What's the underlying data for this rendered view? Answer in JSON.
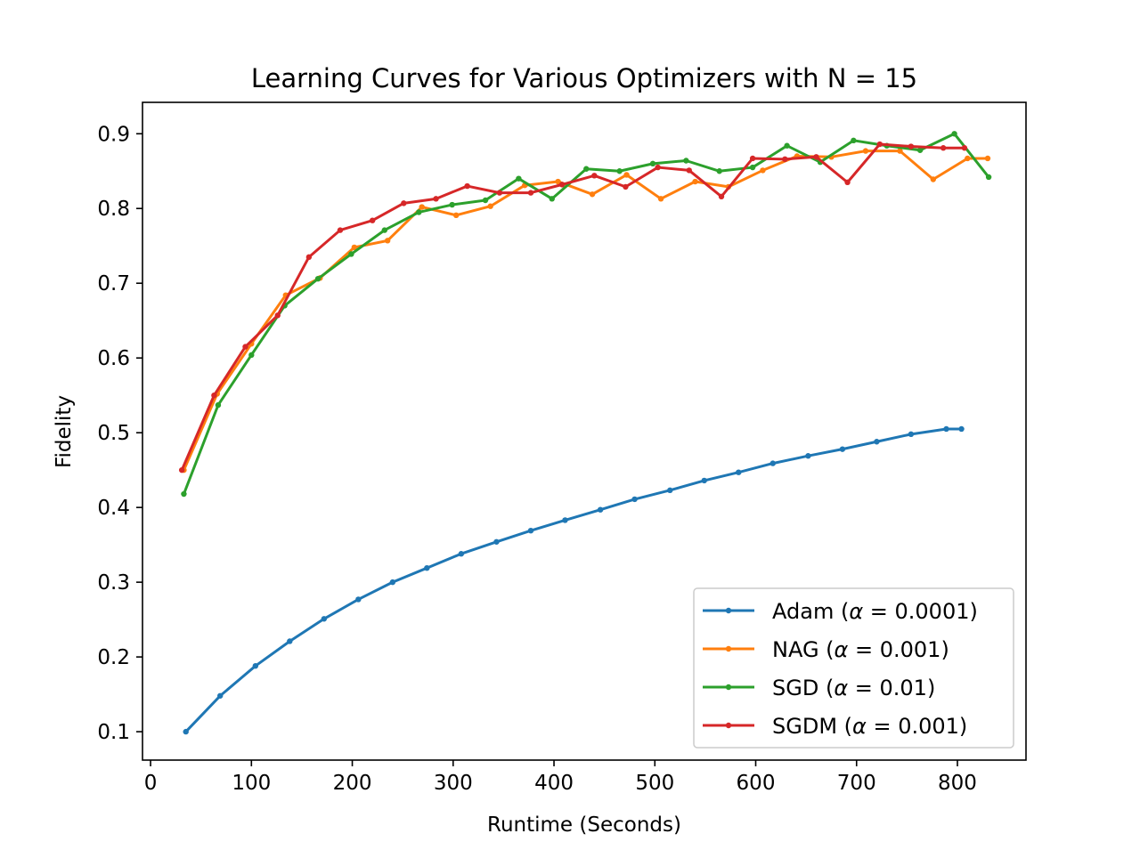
{
  "chart_data": {
    "type": "line",
    "title": "Learning Curves for Various Optimizers with N = 15",
    "xlabel": "Runtime (Seconds)",
    "ylabel": "Fidelity",
    "xlim": [
      -8,
      868
    ],
    "ylim": [
      0.062,
      0.942
    ],
    "xticks": [
      0,
      100,
      200,
      300,
      400,
      500,
      600,
      700,
      800
    ],
    "yticks": [
      0.1,
      0.2,
      0.3,
      0.4,
      0.5,
      0.6,
      0.7,
      0.8,
      0.9
    ],
    "xtick_labels": [
      "0",
      "100",
      "200",
      "300",
      "400",
      "500",
      "600",
      "700",
      "800"
    ],
    "ytick_labels": [
      "0.1",
      "0.2",
      "0.3",
      "0.4",
      "0.5",
      "0.6",
      "0.7",
      "0.8",
      "0.9"
    ],
    "grid": false,
    "legend": {
      "position": "lower-right",
      "entries": [
        {
          "prefix": "Adam (",
          "greek": "α",
          "suffix": " = 0.0001)"
        },
        {
          "prefix": "NAG (",
          "greek": "α",
          "suffix": " = 0.001)"
        },
        {
          "prefix": "SGD (",
          "greek": "α",
          "suffix": " = 0.01)"
        },
        {
          "prefix": "SGDM (",
          "greek": "α",
          "suffix": " = 0.001)"
        }
      ]
    },
    "series": [
      {
        "key": "adam",
        "color": "#1f77b4",
        "x": [
          35,
          69,
          104,
          138,
          172,
          206,
          240,
          274,
          308,
          343,
          377,
          411,
          446,
          480,
          515,
          549,
          583,
          617,
          652,
          686,
          720,
          754,
          789,
          804
        ],
        "y": [
          0.1,
          0.148,
          0.188,
          0.221,
          0.251,
          0.277,
          0.3,
          0.319,
          0.338,
          0.354,
          0.369,
          0.383,
          0.397,
          0.411,
          0.423,
          0.436,
          0.447,
          0.459,
          0.469,
          0.478,
          0.488,
          0.498,
          0.505,
          0.505
        ]
      },
      {
        "key": "nag",
        "color": "#ff7f0e",
        "x": [
          33,
          66,
          100,
          134,
          168,
          202,
          235,
          269,
          303,
          337,
          371,
          404,
          438,
          472,
          506,
          540,
          573,
          607,
          641,
          675,
          709,
          743,
          776,
          810,
          830
        ],
        "y": [
          0.45,
          0.552,
          0.619,
          0.684,
          0.707,
          0.748,
          0.757,
          0.802,
          0.791,
          0.803,
          0.831,
          0.836,
          0.819,
          0.845,
          0.813,
          0.836,
          0.829,
          0.851,
          0.87,
          0.869,
          0.877,
          0.877,
          0.839,
          0.867,
          0.867
        ]
      },
      {
        "key": "sgd",
        "color": "#2ca02c",
        "x": [
          33,
          67,
          100,
          133,
          166,
          199,
          232,
          266,
          299,
          332,
          365,
          398,
          432,
          465,
          498,
          531,
          564,
          597,
          631,
          664,
          697,
          730,
          763,
          797,
          831
        ],
        "y": [
          0.418,
          0.537,
          0.604,
          0.67,
          0.706,
          0.739,
          0.771,
          0.795,
          0.805,
          0.811,
          0.84,
          0.813,
          0.853,
          0.85,
          0.86,
          0.864,
          0.85,
          0.855,
          0.884,
          0.862,
          0.891,
          0.884,
          0.878,
          0.9,
          0.842
        ]
      },
      {
        "key": "sgdm",
        "color": "#d62728",
        "x": [
          31,
          63,
          94,
          126,
          157,
          188,
          220,
          251,
          283,
          314,
          346,
          377,
          408,
          440,
          471,
          503,
          534,
          566,
          597,
          629,
          660,
          691,
          723,
          754,
          786,
          807
        ],
        "y": [
          0.45,
          0.55,
          0.615,
          0.657,
          0.735,
          0.771,
          0.784,
          0.807,
          0.813,
          0.83,
          0.821,
          0.821,
          0.832,
          0.844,
          0.829,
          0.855,
          0.851,
          0.816,
          0.867,
          0.866,
          0.869,
          0.835,
          0.886,
          0.883,
          0.881,
          0.881
        ]
      }
    ]
  }
}
